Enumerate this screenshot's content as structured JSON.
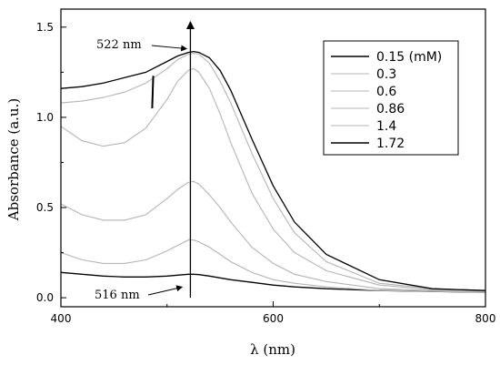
{
  "chart_data": {
    "type": "line",
    "title": "",
    "xlabel": "λ (nm)",
    "ylabel": "Absorbance (a.u.)",
    "xlim": [
      400,
      800
    ],
    "ylim": [
      -0.05,
      1.6
    ],
    "xticks": [
      400,
      600,
      800
    ],
    "yticks": [
      0.0,
      0.5,
      1.0,
      1.5
    ],
    "ytick_labels": [
      "0.0",
      "0.5",
      "1.0",
      "1.5"
    ],
    "grid": false,
    "legend_position": "top-right",
    "series": [
      {
        "name": "0.15 (mM)",
        "color": "#000000",
        "x": [
          400,
          420,
          440,
          460,
          480,
          500,
          510,
          520,
          525,
          530,
          540,
          550,
          560,
          580,
          600,
          620,
          650,
          700,
          750,
          800
        ],
        "y": [
          0.14,
          0.13,
          0.12,
          0.115,
          0.115,
          0.12,
          0.125,
          0.13,
          0.13,
          0.128,
          0.12,
          0.11,
          0.1,
          0.085,
          0.07,
          0.06,
          0.05,
          0.04,
          0.035,
          0.03
        ]
      },
      {
        "name": "0.3",
        "color": "#b5b5b5",
        "x": [
          400,
          420,
          440,
          460,
          480,
          500,
          510,
          520,
          525,
          530,
          540,
          550,
          560,
          580,
          600,
          620,
          650,
          700,
          750,
          800
        ],
        "y": [
          0.25,
          0.21,
          0.19,
          0.19,
          0.21,
          0.26,
          0.29,
          0.32,
          0.32,
          0.31,
          0.28,
          0.24,
          0.2,
          0.14,
          0.1,
          0.08,
          0.06,
          0.04,
          0.035,
          0.03
        ]
      },
      {
        "name": "0.6",
        "color": "#b5b5b5",
        "x": [
          400,
          420,
          440,
          460,
          480,
          500,
          510,
          520,
          525,
          530,
          540,
          550,
          560,
          580,
          600,
          620,
          650,
          700,
          750,
          800
        ],
        "y": [
          0.52,
          0.46,
          0.43,
          0.43,
          0.46,
          0.55,
          0.6,
          0.64,
          0.645,
          0.63,
          0.57,
          0.5,
          0.42,
          0.28,
          0.19,
          0.13,
          0.09,
          0.05,
          0.04,
          0.03
        ]
      },
      {
        "name": "0.86",
        "color": "#b5b5b5",
        "x": [
          400,
          420,
          440,
          460,
          480,
          500,
          510,
          520,
          525,
          530,
          540,
          550,
          560,
          580,
          600,
          620,
          650,
          700,
          750,
          800
        ],
        "y": [
          0.95,
          0.87,
          0.84,
          0.86,
          0.94,
          1.1,
          1.2,
          1.26,
          1.27,
          1.25,
          1.16,
          1.02,
          0.86,
          0.58,
          0.38,
          0.25,
          0.15,
          0.07,
          0.045,
          0.035
        ]
      },
      {
        "name": "1.4",
        "color": "#b5b5b5",
        "x": [
          400,
          420,
          440,
          460,
          480,
          500,
          510,
          520,
          525,
          530,
          540,
          550,
          560,
          580,
          600,
          620,
          650,
          700,
          750,
          800
        ],
        "y": [
          1.08,
          1.09,
          1.11,
          1.14,
          1.19,
          1.27,
          1.32,
          1.35,
          1.355,
          1.35,
          1.3,
          1.2,
          1.08,
          0.8,
          0.55,
          0.36,
          0.2,
          0.08,
          0.05,
          0.04
        ]
      },
      {
        "name": "1.72",
        "color": "#000000",
        "x": [
          400,
          420,
          440,
          460,
          480,
          500,
          510,
          520,
          525,
          530,
          540,
          550,
          560,
          580,
          600,
          620,
          650,
          700,
          750,
          800
        ],
        "y": [
          1.16,
          1.17,
          1.19,
          1.22,
          1.25,
          1.31,
          1.34,
          1.36,
          1.365,
          1.36,
          1.33,
          1.26,
          1.15,
          0.88,
          0.62,
          0.42,
          0.24,
          0.1,
          0.05,
          0.04
        ]
      }
    ],
    "annotations": [
      {
        "text": "522 nm",
        "target_x": 522,
        "target_y": 1.36
      },
      {
        "text": "516 nm",
        "target_x": 516,
        "target_y": 0.13
      }
    ],
    "arrow": {
      "x": 522,
      "y_from": 0.0,
      "y_to": 1.53
    }
  }
}
